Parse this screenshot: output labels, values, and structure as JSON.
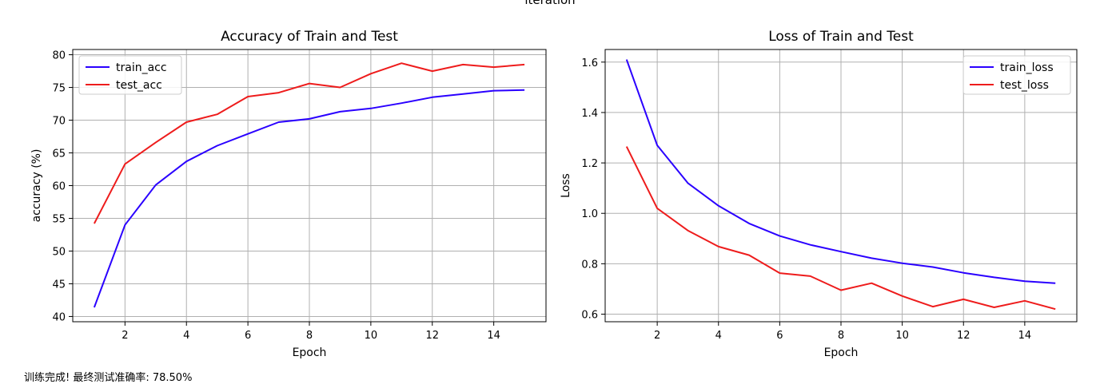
{
  "suptitle": "iteration",
  "status_text": "训练完成! 最终测试准确率: 78.50%",
  "chart_data": [
    {
      "type": "line",
      "title": "Accuracy of Train and Test",
      "xlabel": "Epoch",
      "ylabel": "accuracy (%)",
      "xlim": [
        0.3,
        15.7
      ],
      "ylim": [
        39.2,
        80.8
      ],
      "xticks": [
        2,
        4,
        6,
        8,
        10,
        12,
        14
      ],
      "yticks": [
        40,
        45,
        50,
        55,
        60,
        65,
        70,
        75,
        80
      ],
      "grid": true,
      "legend": "upper left",
      "x": [
        1,
        2,
        3,
        4,
        5,
        6,
        7,
        8,
        9,
        10,
        11,
        12,
        13,
        14,
        15
      ],
      "series": [
        {
          "name": "train_acc",
          "color": "#2a00ff",
          "values": [
            41.4,
            54.0,
            60.1,
            63.7,
            66.1,
            67.9,
            69.7,
            70.2,
            71.3,
            71.8,
            72.6,
            73.5,
            74.0,
            74.5,
            74.6
          ]
        },
        {
          "name": "test_acc",
          "color": "#ee1c1c",
          "values": [
            54.2,
            63.3,
            66.6,
            69.7,
            70.9,
            73.6,
            74.2,
            75.6,
            75.0,
            77.1,
            78.7,
            77.5,
            78.5,
            78.1,
            78.5
          ]
        }
      ]
    },
    {
      "type": "line",
      "title": "Loss of Train and Test",
      "xlabel": "Epoch",
      "ylabel": "Loss",
      "xlim": [
        0.3,
        15.7
      ],
      "ylim": [
        0.57,
        1.65
      ],
      "xticks": [
        2,
        4,
        6,
        8,
        10,
        12,
        14
      ],
      "yticks": [
        0.6,
        0.8,
        1.0,
        1.2,
        1.4,
        1.6
      ],
      "grid": true,
      "legend": "upper right",
      "x": [
        1,
        2,
        3,
        4,
        5,
        6,
        7,
        8,
        9,
        10,
        11,
        12,
        13,
        14,
        15
      ],
      "series": [
        {
          "name": "train_loss",
          "color": "#2a00ff",
          "values": [
            1.61,
            1.27,
            1.12,
            1.03,
            0.96,
            0.91,
            0.875,
            0.848,
            0.822,
            0.802,
            0.787,
            0.764,
            0.746,
            0.731,
            0.723
          ]
        },
        {
          "name": "test_loss",
          "color": "#ee1c1c",
          "values": [
            1.265,
            1.02,
            0.932,
            0.868,
            0.834,
            0.763,
            0.751,
            0.695,
            0.723,
            0.672,
            0.63,
            0.659,
            0.627,
            0.653,
            0.62
          ]
        }
      ]
    }
  ]
}
